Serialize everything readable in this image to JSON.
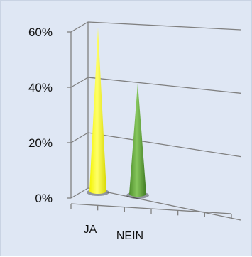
{
  "chart_data": {
    "type": "bar",
    "bar_shape": "cone",
    "three_d": true,
    "categories": [
      "JA",
      "NEIN"
    ],
    "values": [
      0.59,
      0.4
    ],
    "y_unit": "percent",
    "ylim": [
      0,
      0.6
    ],
    "ytick_values": [
      0,
      0.2,
      0.4,
      0.6
    ],
    "ytick_labels": [
      "0%",
      "20%",
      "40%",
      "60%"
    ],
    "grid": true,
    "legend": "none",
    "title": "",
    "xlabel": "",
    "ylabel": "",
    "colors": {
      "JA": "#ffff1a",
      "NEIN": "#6cae45",
      "background": "#dfe7f4",
      "grid": "#808080"
    }
  }
}
